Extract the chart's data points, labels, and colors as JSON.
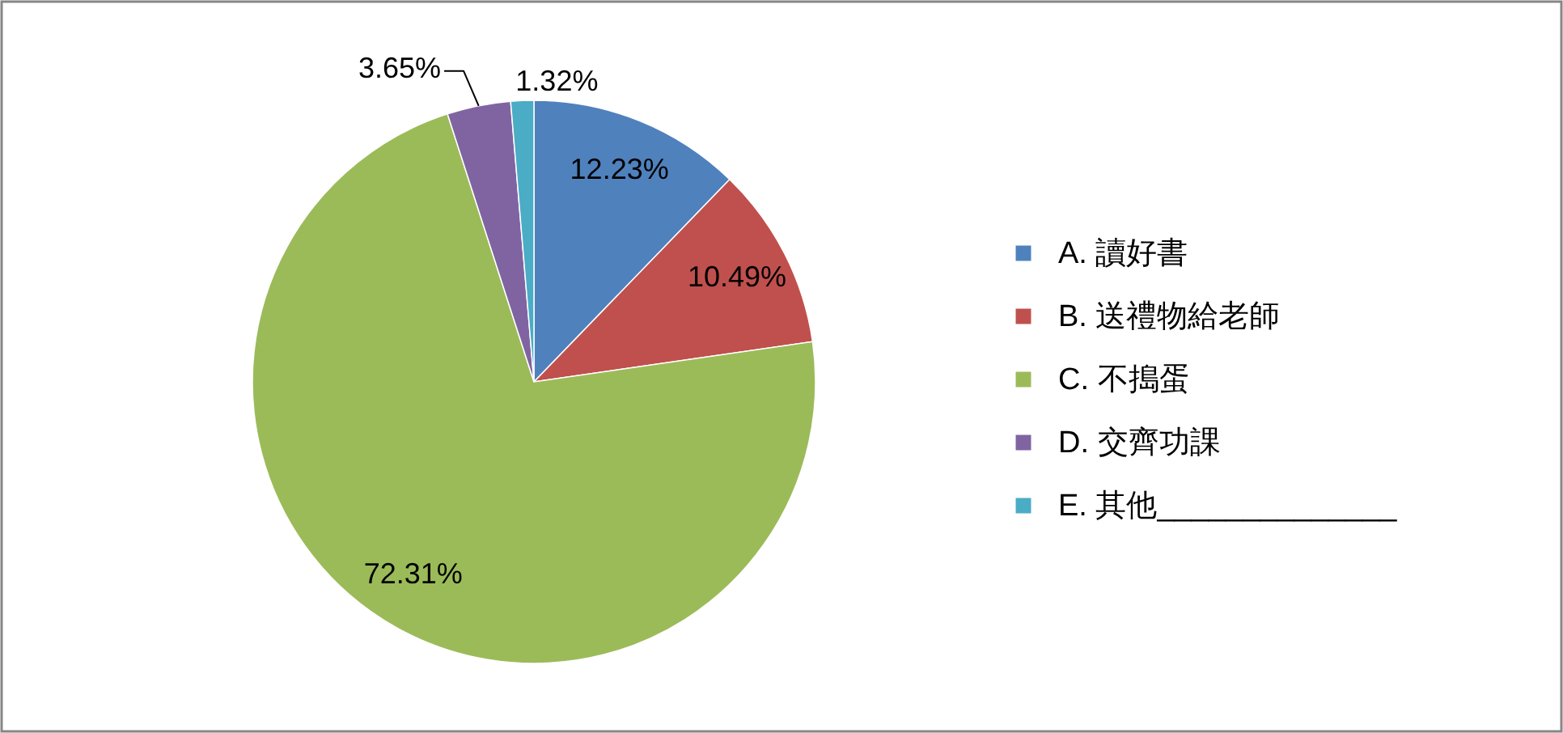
{
  "chart_data": {
    "type": "pie",
    "categories": [
      "A. 讀好書",
      "B. 送禮物給老師",
      "C. 不搗蛋",
      "D. 交齊功課",
      "E. 其他______________"
    ],
    "values": [
      12.23,
      10.49,
      72.31,
      3.65,
      1.32
    ],
    "colors": [
      "#4f81bd",
      "#c0504d",
      "#9bbb59",
      "#8064a2",
      "#4bacc6"
    ],
    "value_labels": [
      "12.23%",
      "10.49%",
      "72.31%",
      "3.65%",
      "1.32%"
    ],
    "legend": "right"
  }
}
